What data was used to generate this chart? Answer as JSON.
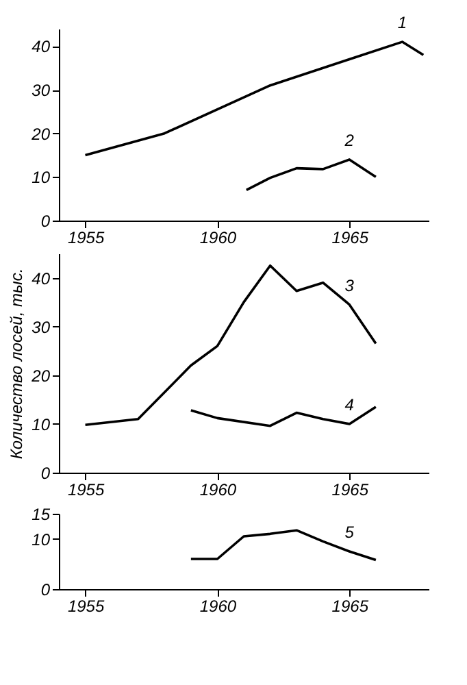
{
  "chart_data": [
    {
      "type": "line",
      "xlim": [
        1954,
        1968
      ],
      "xticks": [
        1955,
        1960,
        1965
      ],
      "ylim": [
        0,
        44
      ],
      "yticks": [
        0,
        10,
        20,
        30,
        40
      ],
      "grid": false,
      "legend": false,
      "series": [
        {
          "name": "1",
          "color": "#000000",
          "x": [
            1955,
            1958,
            1962,
            1965,
            1967,
            1967.8
          ],
          "values": [
            15,
            20,
            31,
            37,
            41,
            38
          ]
        },
        {
          "name": "2",
          "color": "#000000",
          "x": [
            1961.1,
            1962,
            1963,
            1964,
            1965,
            1966
          ],
          "values": [
            7,
            9.8,
            12,
            11.8,
            14,
            10
          ]
        }
      ]
    },
    {
      "type": "line",
      "xlim": [
        1954,
        1968
      ],
      "xticks": [
        1955,
        1960,
        1965
      ],
      "ylim": [
        0,
        45
      ],
      "yticks": [
        0,
        10,
        20,
        30,
        40
      ],
      "ylabel": "Количество лосей, тыс.",
      "grid": false,
      "legend": false,
      "series": [
        {
          "name": "3",
          "color": "#000000",
          "x": [
            1955,
            1957,
            1959,
            1960,
            1961,
            1962,
            1963,
            1964,
            1965,
            1966
          ],
          "values": [
            9.8,
            11,
            22,
            26,
            35,
            42.5,
            37.3,
            39,
            34.5,
            26.5
          ]
        },
        {
          "name": "4",
          "color": "#000000",
          "x": [
            1959,
            1960,
            1962,
            1963,
            1964,
            1965,
            1966
          ],
          "values": [
            12.8,
            11.2,
            9.6,
            12.3,
            11,
            10,
            13.5
          ]
        }
      ]
    },
    {
      "type": "line",
      "xlim": [
        1954,
        1968
      ],
      "xticks": [
        1955,
        1960,
        1965
      ],
      "ylim": [
        0,
        15
      ],
      "yticks": [
        0,
        10,
        15
      ],
      "grid": false,
      "legend": false,
      "series": [
        {
          "name": "5",
          "color": "#000000",
          "x": [
            1959,
            1960,
            1961,
            1962,
            1963,
            1964,
            1965,
            1966
          ],
          "values": [
            6,
            6,
            10.5,
            11,
            11.7,
            9.5,
            7.5,
            5.8
          ]
        }
      ]
    }
  ]
}
